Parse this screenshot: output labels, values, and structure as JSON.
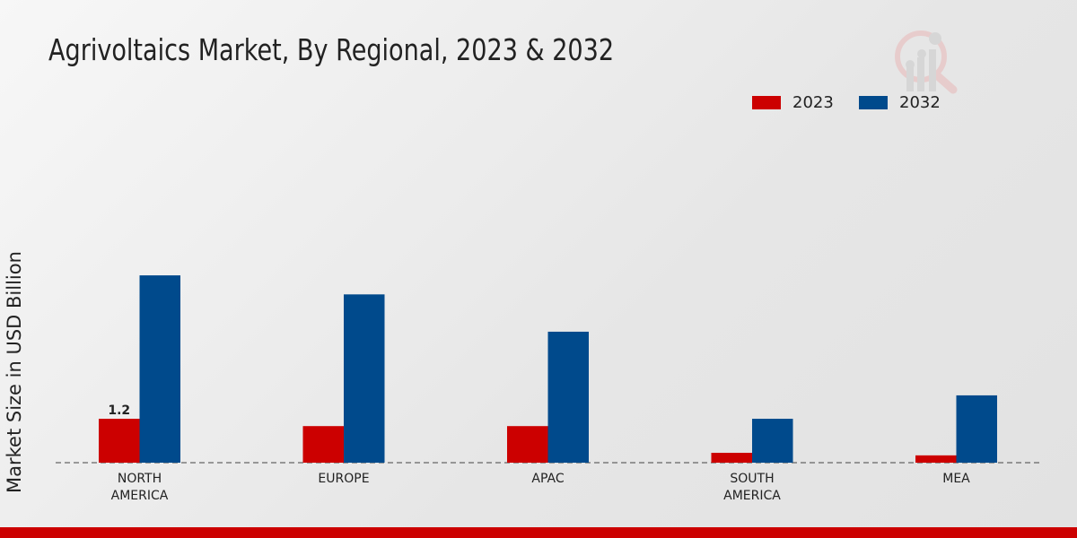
{
  "chart_data": {
    "type": "bar",
    "title": "Agrivoltaics Market, By Regional, 2023 & 2032",
    "xlabel": "",
    "ylabel": "Market Size in USD Billion",
    "categories": [
      "NORTH AMERICA",
      "EUROPE",
      "APAC",
      "SOUTH AMERICA",
      "MEA"
    ],
    "category_lines": [
      [
        "NORTH",
        "AMERICA"
      ],
      [
        "EUROPE"
      ],
      [
        "APAC"
      ],
      [
        "SOUTH",
        "AMERICA"
      ],
      [
        "MEA"
      ]
    ],
    "series": [
      {
        "name": "2023",
        "color": "#cc0000",
        "values": [
          1.2,
          1.0,
          1.0,
          0.27,
          0.2
        ]
      },
      {
        "name": "2032",
        "color": "#004a8c",
        "values": [
          5.12,
          4.6,
          3.58,
          1.2,
          1.84
        ]
      }
    ],
    "data_labels": [
      {
        "series": 0,
        "index": 0,
        "text": "1.2"
      }
    ],
    "ylim": [
      0,
      6
    ],
    "grid": false,
    "legend_position": "top-right"
  }
}
